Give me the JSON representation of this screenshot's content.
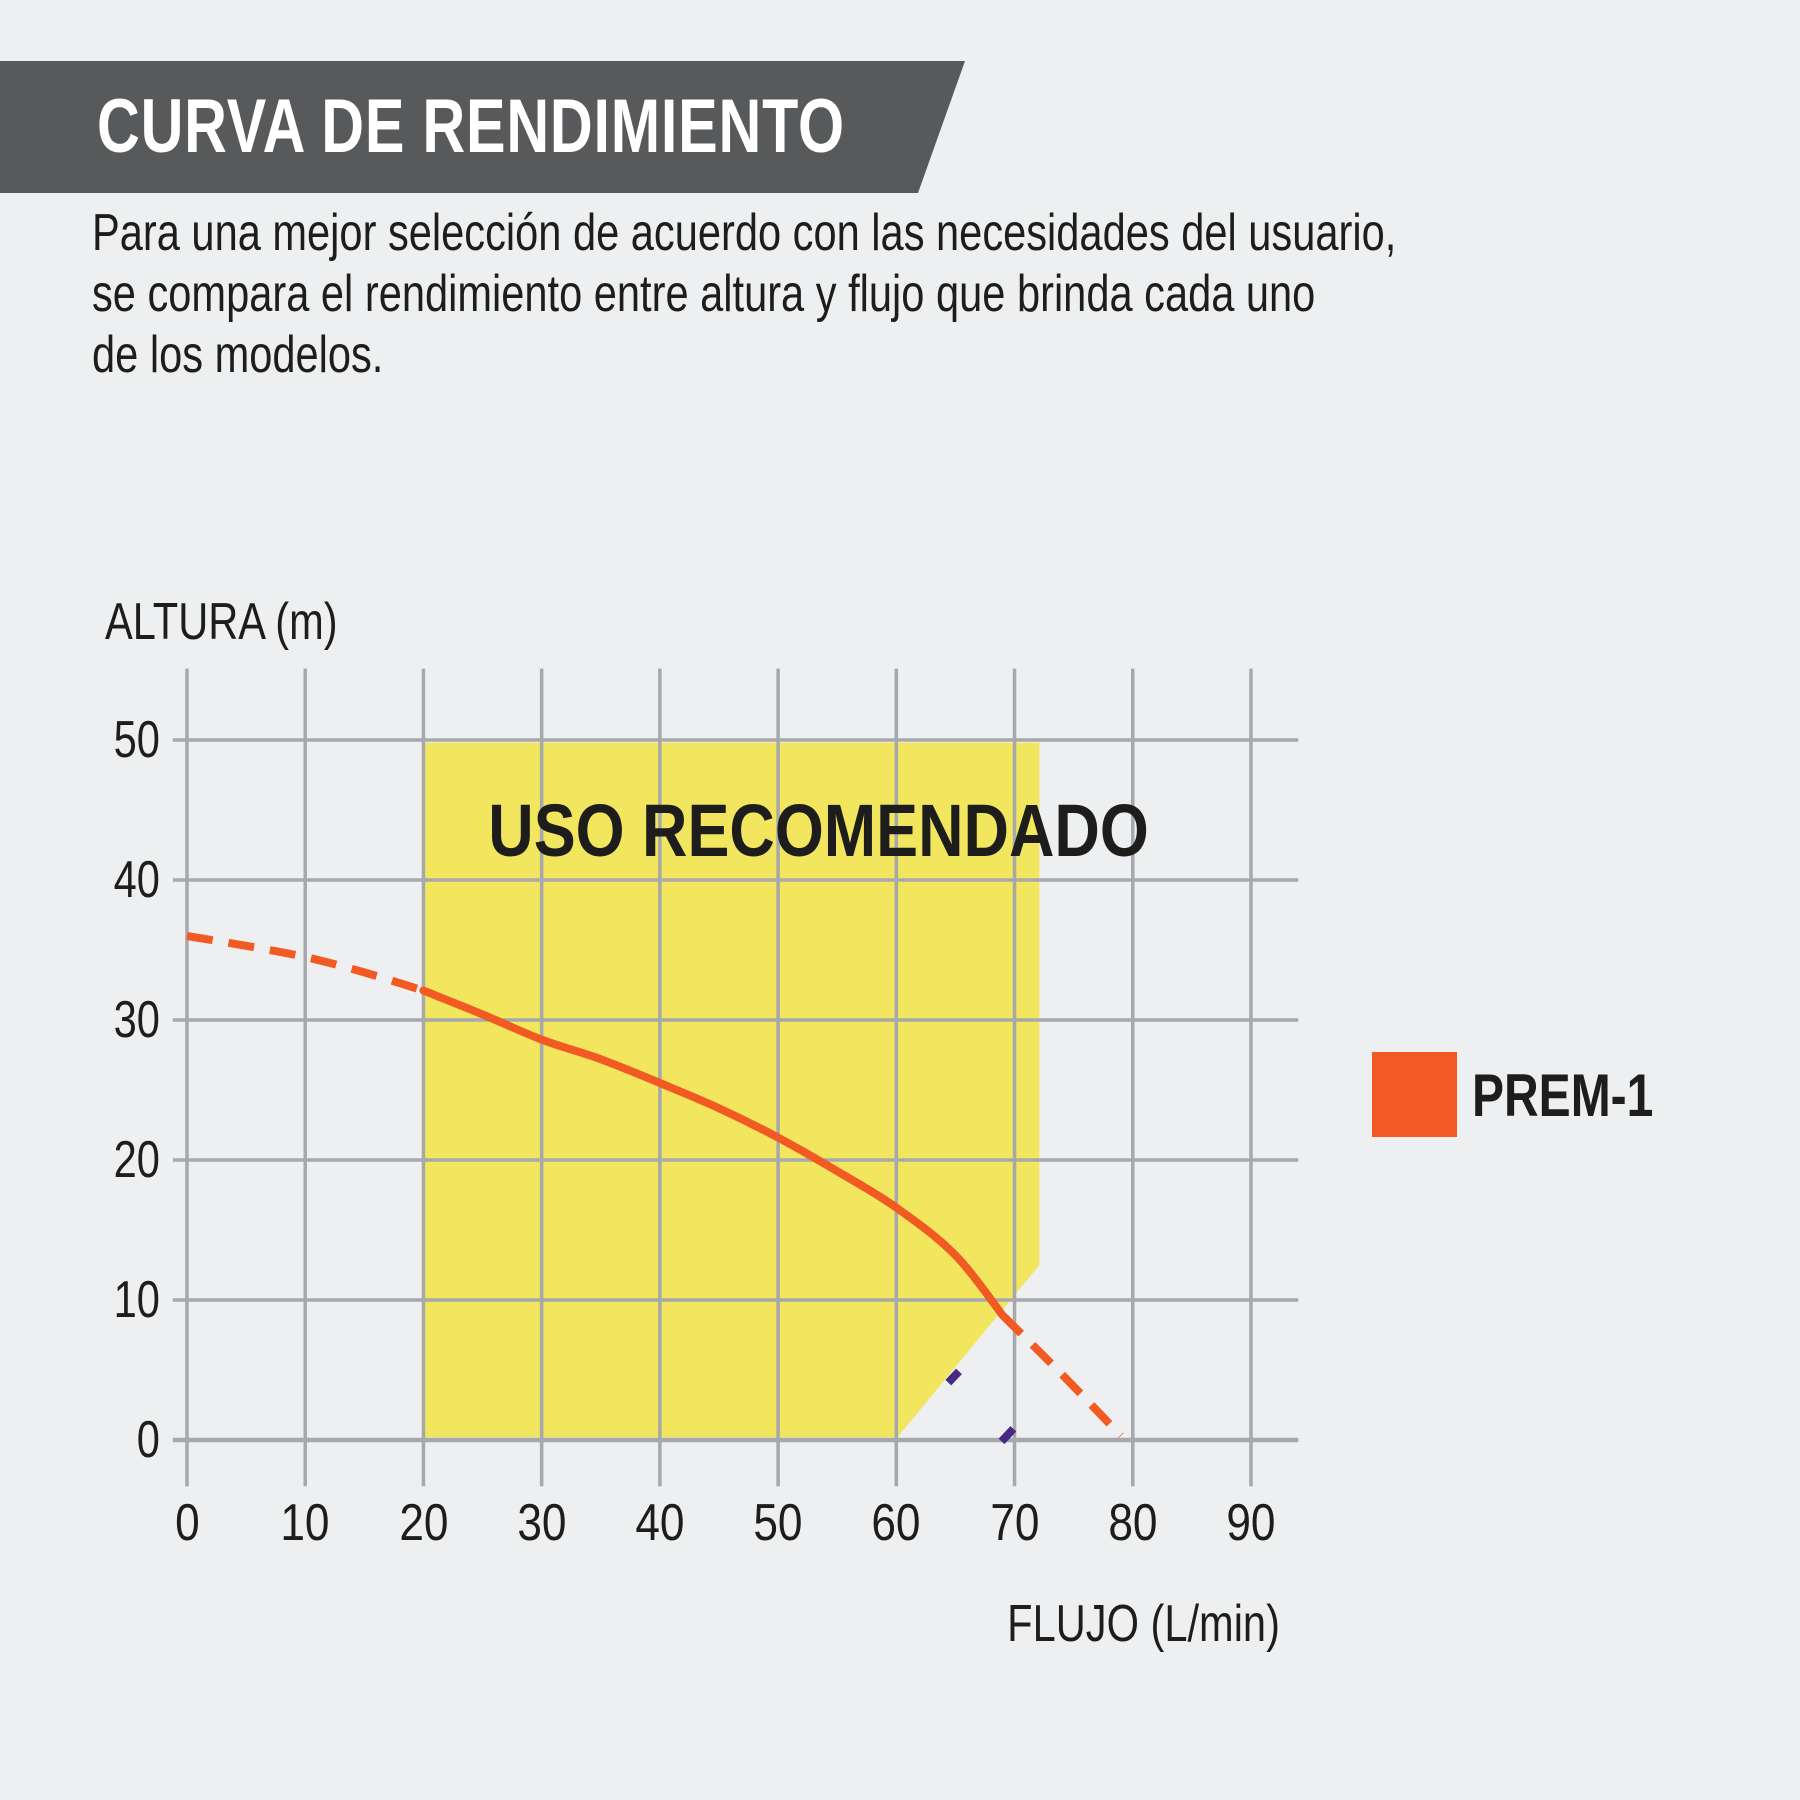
{
  "banner": {
    "title": "CURVA DE RENDIMIENTO"
  },
  "intro": {
    "lines": [
      "Para una mejor selección de acuerdo con las necesidades del usuario,",
      "se compara el rendimiento entre altura y flujo que brinda cada uno",
      "de los modelos."
    ]
  },
  "colors": {
    "background": "#EEEFF0",
    "banner": "#58595B",
    "banner_text": "#FFFFFF",
    "text": "#1D1D1B",
    "grid": "#A6A8AB",
    "region_yellow": "#F2E65F",
    "curve_orange": "#F15A22",
    "stray_purple": "#472882"
  },
  "chart_data": {
    "type": "line",
    "title": "",
    "xlabel": "FLUJO (L/min)",
    "ylabel": "ALTURA (m)",
    "x_ticks": [
      0,
      10,
      20,
      30,
      40,
      50,
      60,
      70,
      80,
      90
    ],
    "y_ticks": [
      0,
      10,
      20,
      30,
      40,
      50
    ],
    "xlim": [
      0,
      90
    ],
    "ylim": [
      0,
      50
    ],
    "grid": true,
    "legend_position": "right",
    "grid_extents": {
      "x_min": -1.2,
      "x_max": 94.0,
      "y_min": -3.3,
      "y_max": 55.1
    },
    "recommended_region": {
      "label": "USO RECOMENDADO",
      "color": "#F2E65F",
      "polygon": [
        [
          20,
          49.8
        ],
        [
          72.1,
          49.8
        ],
        [
          72.1,
          12.5
        ],
        [
          60.1,
          0.2
        ],
        [
          20,
          0.2
        ]
      ]
    },
    "series": [
      {
        "name": "PREM-1",
        "color": "#F15A22",
        "stroke_width": 8,
        "dash_pattern": "26 16",
        "dashed_head": [
          [
            0,
            36.0
          ],
          [
            5,
            35.3
          ],
          [
            10,
            34.5
          ],
          [
            15,
            33.4
          ],
          [
            20,
            32.1
          ]
        ],
        "solid": [
          [
            20,
            32.1
          ],
          [
            25,
            30.4
          ],
          [
            30,
            28.6
          ],
          [
            35,
            27.2
          ],
          [
            40,
            25.5
          ],
          [
            45,
            23.7
          ],
          [
            50,
            21.6
          ],
          [
            55,
            19.2
          ],
          [
            60,
            16.6
          ],
          [
            65,
            13.2
          ],
          [
            69,
            8.9
          ]
        ],
        "dashed_tail": [
          [
            69,
            8.9
          ],
          [
            74,
            4.7
          ],
          [
            79,
            0.3
          ]
        ]
      }
    ],
    "stray_marks": {
      "color": "#472882",
      "stroke_width": 8,
      "segments": [
        [
          [
            64.4,
            4.1
          ],
          [
            65.3,
            4.9
          ]
        ],
        [
          [
            68.9,
            -0.1
          ],
          [
            69.9,
            0.8
          ]
        ]
      ]
    }
  },
  "legend": {
    "items": [
      {
        "label": "PREM-1",
        "color": "#F15A22"
      }
    ]
  }
}
